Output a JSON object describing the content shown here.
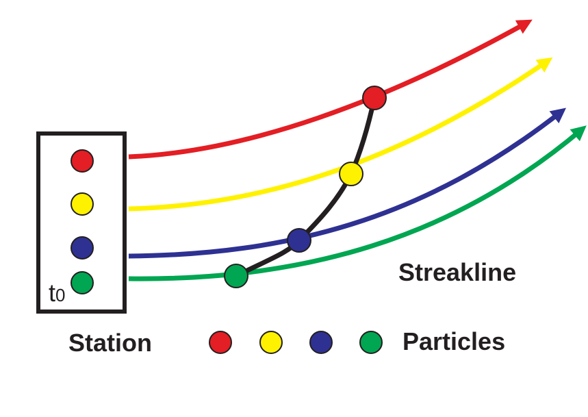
{
  "station": {
    "label": "Station",
    "time_label": "t",
    "time_subscript": "0"
  },
  "streakline": {
    "label": "Streakline"
  },
  "legend": {
    "particles_label": "Particles"
  }
}
